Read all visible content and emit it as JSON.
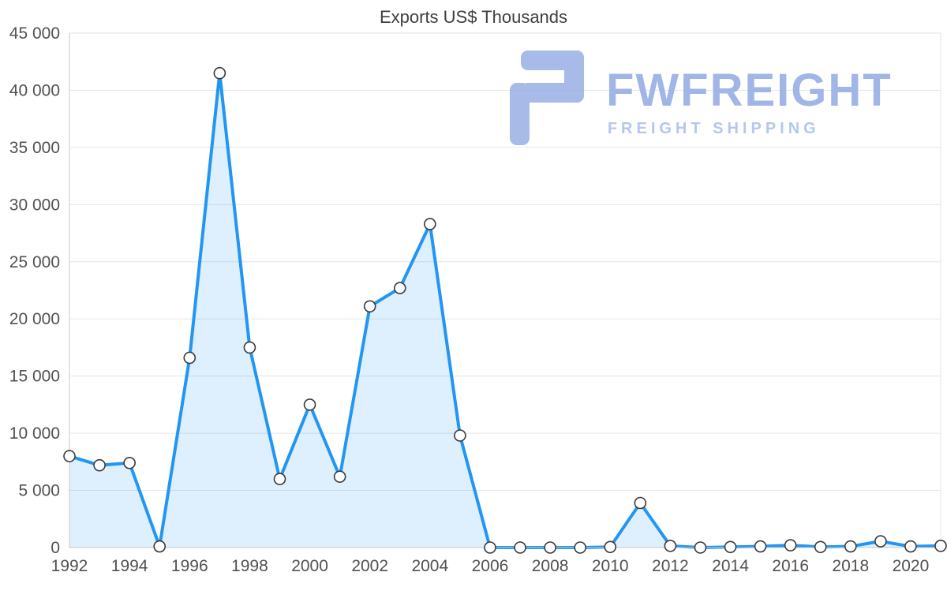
{
  "chart_data": {
    "type": "area",
    "title": "Exports US$ Thousands",
    "xlabel": "",
    "ylabel": "",
    "x": [
      1992,
      1993,
      1994,
      1995,
      1996,
      1997,
      1998,
      1999,
      2000,
      2001,
      2002,
      2003,
      2004,
      2005,
      2006,
      2007,
      2008,
      2009,
      2010,
      2011,
      2012,
      2013,
      2014,
      2015,
      2016,
      2017,
      2018,
      2019,
      2020,
      2021
    ],
    "values": [
      8000,
      7200,
      7400,
      100,
      16600,
      41500,
      17500,
      6000,
      12500,
      6200,
      21100,
      22700,
      28300,
      9800,
      0,
      0,
      0,
      0,
      50,
      3900,
      150,
      0,
      50,
      100,
      200,
      50,
      100,
      550,
      100,
      150
    ],
    "xticks": [
      1992,
      1994,
      1996,
      1998,
      2000,
      2002,
      2004,
      2006,
      2008,
      2010,
      2012,
      2014,
      2016,
      2018,
      2020
    ],
    "ylim": [
      0,
      45000
    ],
    "ytick_step": 5000,
    "grid": true,
    "legend": false,
    "colors": {
      "line": "#2196f3",
      "fill": "rgba(33,150,243,0.15)",
      "marker_fill": "#ffffff",
      "marker_stroke": "#3a3a3a",
      "grid": "#e6e6e6",
      "axis": "#c8c8c8",
      "tick_text": "#515151",
      "title_text": "#3f3f3f",
      "watermark_brand": "#9db2e6",
      "watermark_tagline": "#b2c5ee",
      "watermark_icon": "#93aae2"
    }
  },
  "watermark": {
    "brand": "FWFREIGHT",
    "tagline": "FREIGHT SHIPPING"
  }
}
